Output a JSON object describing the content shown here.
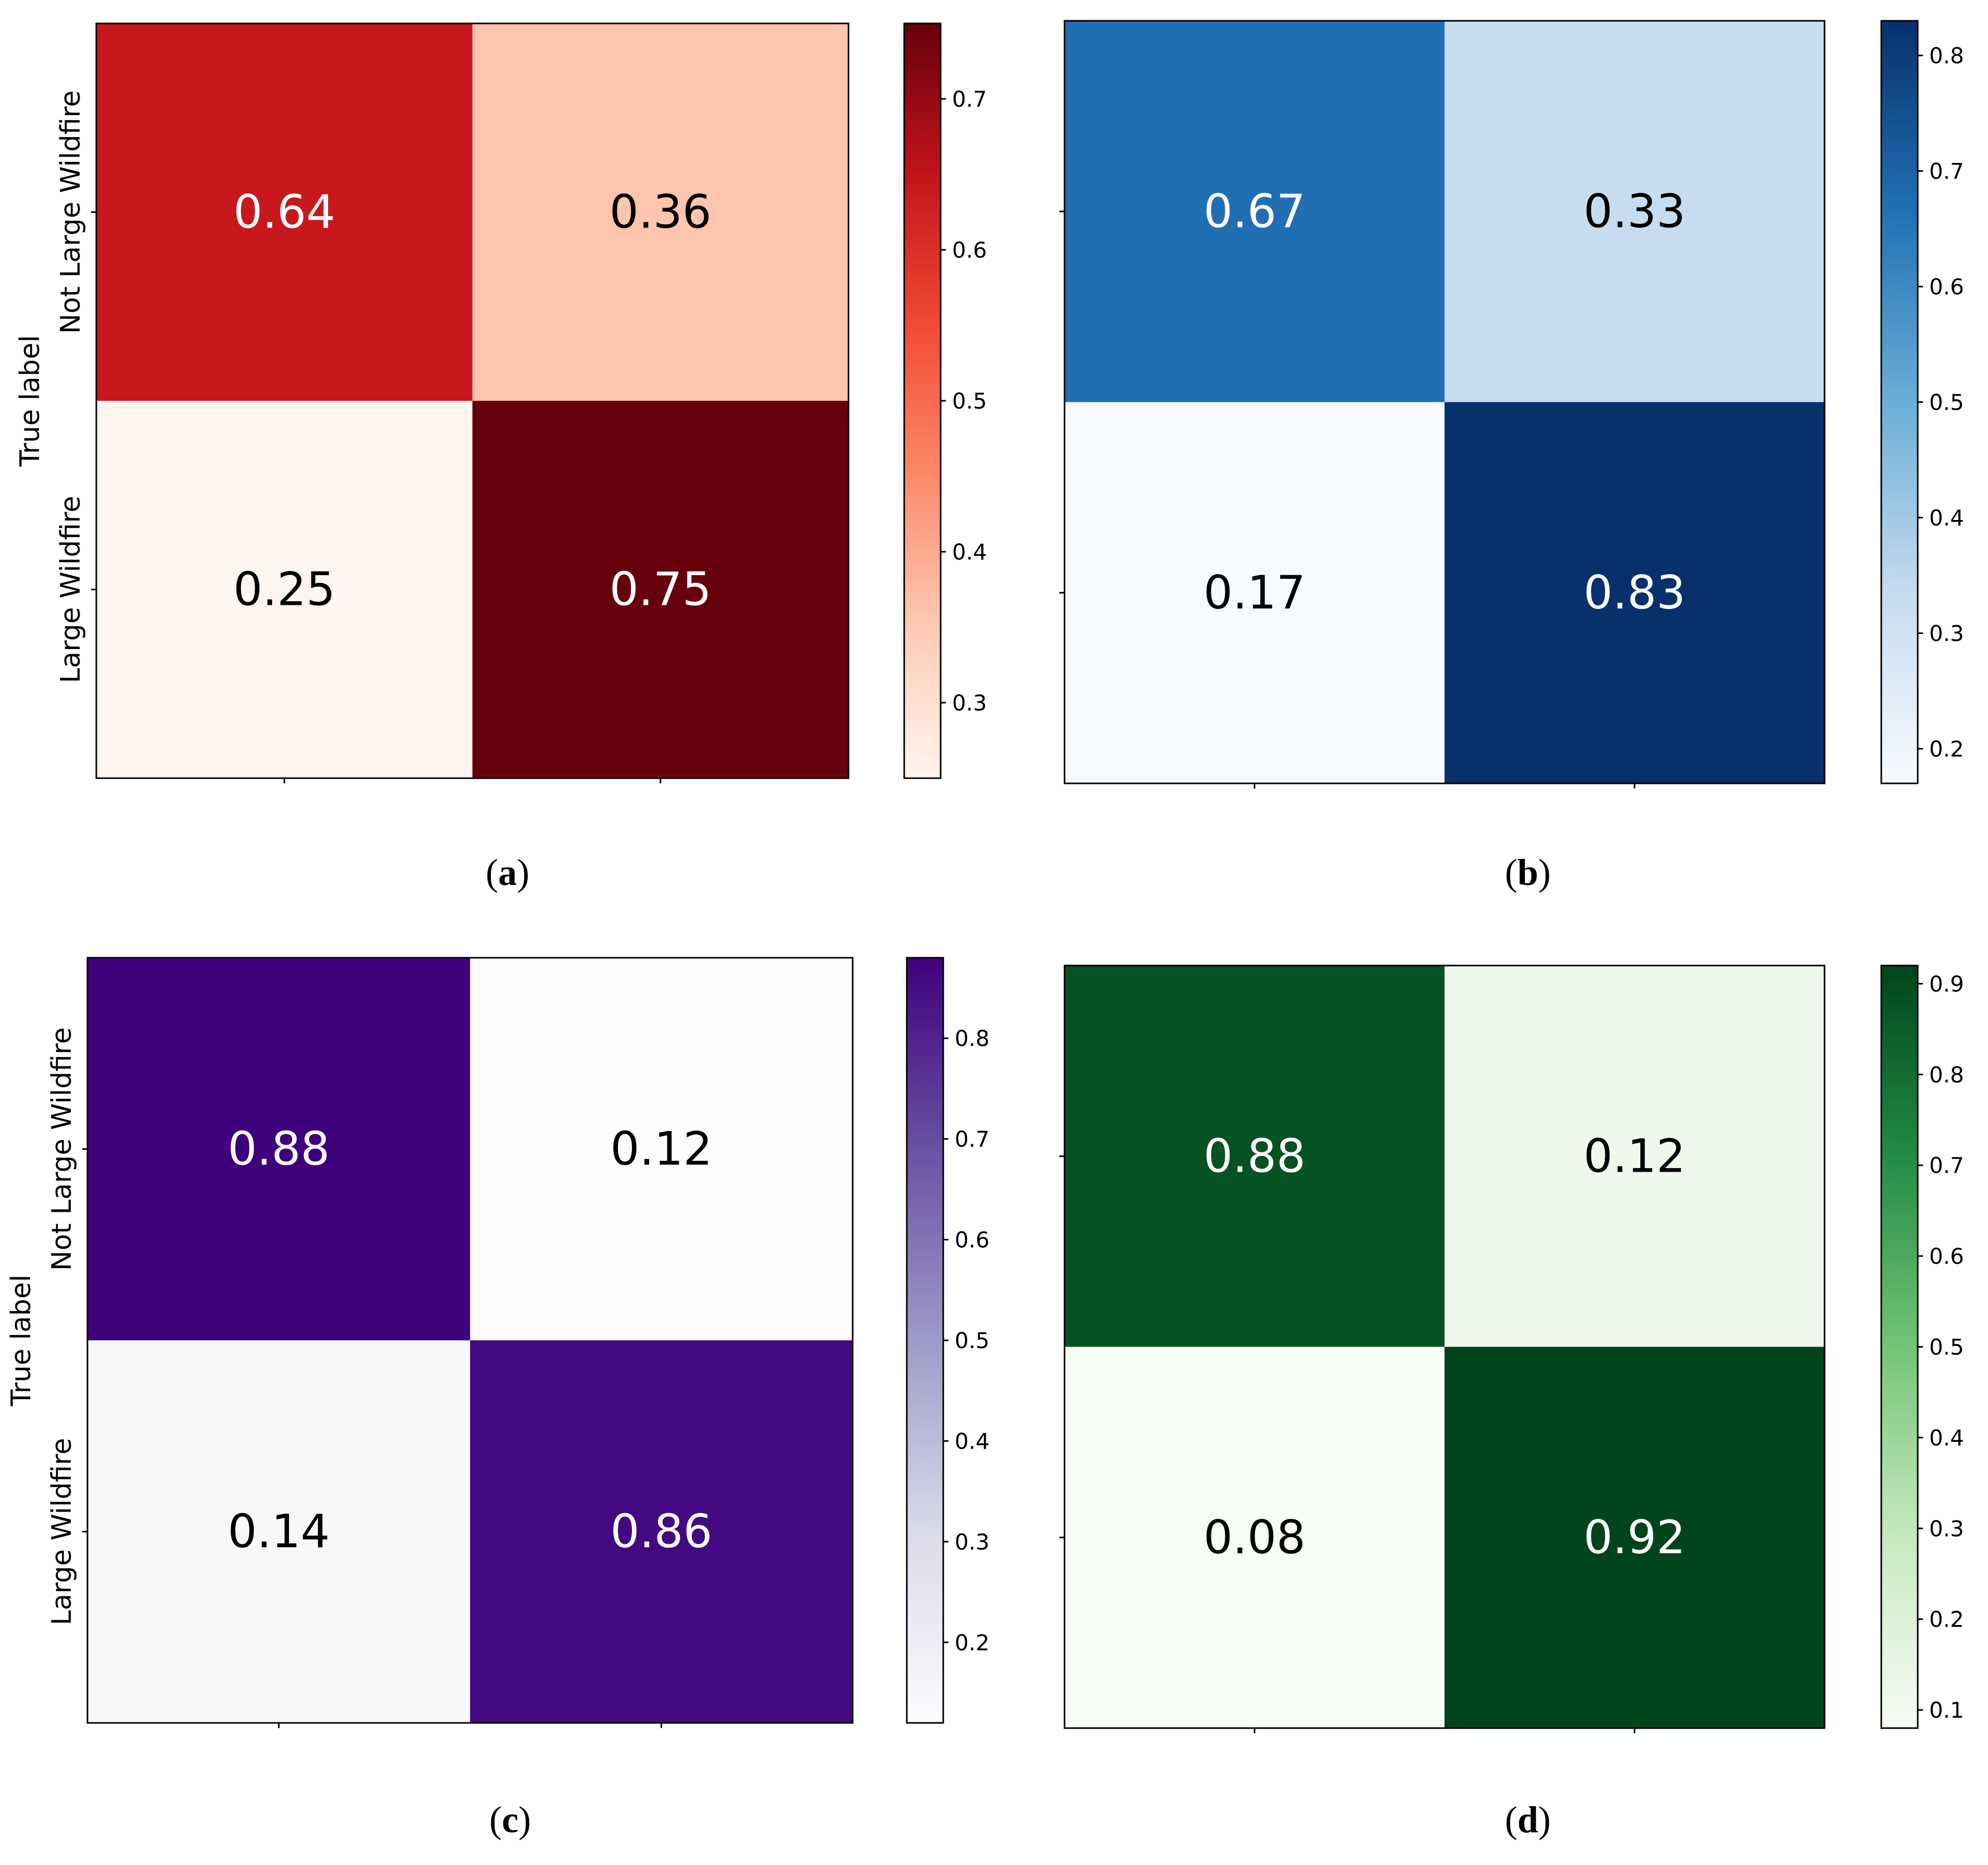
{
  "figure_name": "confusion-matrix-grid",
  "chart_data": [
    {
      "type": "heatmap",
      "panel": "a",
      "caption_open": "(",
      "caption_letter": "a",
      "caption_close": ")",
      "ylabel": "True label",
      "row_labels": [
        "Not Large Wildfire",
        "Large Wildfire"
      ],
      "values": [
        [
          0.64,
          0.36
        ],
        [
          0.25,
          0.75
        ]
      ],
      "value_labels": [
        [
          "0.64",
          "0.36"
        ],
        [
          "0.25",
          "0.75"
        ]
      ],
      "colormap": "Reds",
      "colormap_stops": [
        "#fff5f0",
        "#fdcab5",
        "#fc8a6a",
        "#f24a34",
        "#c3131b",
        "#67000d"
      ],
      "vmin": 0.25,
      "vmax": 0.75,
      "colorbar_ticks": [
        0.3,
        0.4,
        0.5,
        0.6,
        0.7
      ],
      "colorbar_tick_labels": [
        "0.3",
        "0.4",
        "0.5",
        "0.6",
        "0.7"
      ]
    },
    {
      "type": "heatmap",
      "panel": "b",
      "caption_open": "(",
      "caption_letter": "b",
      "caption_close": ")",
      "ylabel": "",
      "row_labels": [
        "",
        ""
      ],
      "values": [
        [
          0.67,
          0.33
        ],
        [
          0.17,
          0.83
        ]
      ],
      "value_labels": [
        [
          "0.67",
          "0.33"
        ],
        [
          "0.17",
          "0.83"
        ]
      ],
      "colormap": "Blues",
      "colormap_stops": [
        "#f7fbff",
        "#c6dbef",
        "#6aaed6",
        "#2171b5",
        "#08306b"
      ],
      "vmin": 0.17,
      "vmax": 0.83,
      "colorbar_ticks": [
        0.2,
        0.3,
        0.4,
        0.5,
        0.6,
        0.7,
        0.8
      ],
      "colorbar_tick_labels": [
        "0.2",
        "0.3",
        "0.4",
        "0.5",
        "0.6",
        "0.7",
        "0.8"
      ]
    },
    {
      "type": "heatmap",
      "panel": "c",
      "caption_open": "(",
      "caption_letter": "c",
      "caption_close": ")",
      "ylabel": "True label",
      "row_labels": [
        "Not Large Wildfire",
        "Large Wildfire"
      ],
      "values": [
        [
          0.88,
          0.12
        ],
        [
          0.14,
          0.86
        ]
      ],
      "value_labels": [
        [
          "0.88",
          "0.12"
        ],
        [
          "0.14",
          "0.86"
        ]
      ],
      "colormap": "Purples",
      "colormap_stops": [
        "#fcfbfd",
        "#dadaeb",
        "#9e9ac8",
        "#6a51a3",
        "#3f007d"
      ],
      "vmin": 0.12,
      "vmax": 0.88,
      "colorbar_ticks": [
        0.2,
        0.3,
        0.4,
        0.5,
        0.6,
        0.7,
        0.8
      ],
      "colorbar_tick_labels": [
        "0.2",
        "0.3",
        "0.4",
        "0.5",
        "0.6",
        "0.7",
        "0.8"
      ]
    },
    {
      "type": "heatmap",
      "panel": "d",
      "caption_open": "(",
      "caption_letter": "d",
      "caption_close": ")",
      "ylabel": "",
      "row_labels": [
        "",
        ""
      ],
      "values": [
        [
          0.88,
          0.12
        ],
        [
          0.08,
          0.92
        ]
      ],
      "value_labels": [
        [
          "0.88",
          "0.12"
        ],
        [
          "0.08",
          "0.92"
        ]
      ],
      "colormap": "Greens",
      "colormap_stops": [
        "#f7fcf5",
        "#c7e9c0",
        "#74c476",
        "#238b45",
        "#00441b"
      ],
      "vmin": 0.08,
      "vmax": 0.92,
      "colorbar_ticks": [
        0.1,
        0.2,
        0.3,
        0.4,
        0.5,
        0.6,
        0.7,
        0.8,
        0.9
      ],
      "colorbar_tick_labels": [
        "0.1",
        "0.2",
        "0.3",
        "0.4",
        "0.5",
        "0.6",
        "0.7",
        "0.8",
        "0.9"
      ]
    }
  ]
}
